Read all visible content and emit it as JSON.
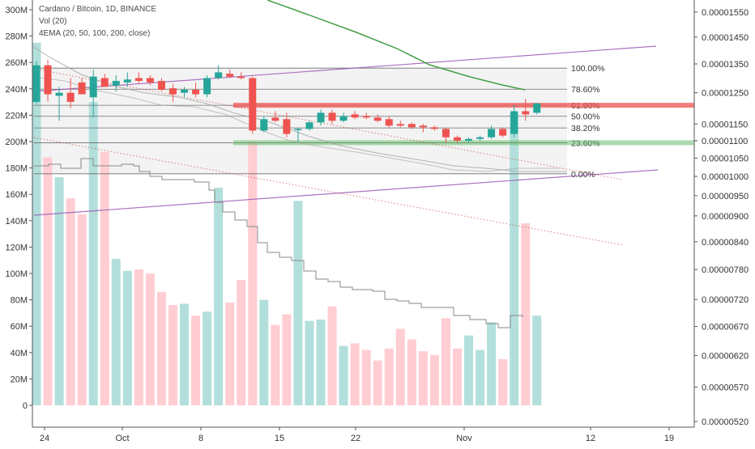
{
  "chart_data": {
    "type": "candlestick",
    "title": "Cardano / Bitcoin, 1D, BINANCE",
    "legend_lines": [
      "Cardano / Bitcoin, 1D, BINANCE",
      "Vol (20)",
      "4EMA (20, 50, 100, 200, close)"
    ],
    "left_axis": {
      "ticks": [
        "300M",
        "280M",
        "260M",
        "240M",
        "220M",
        "200M",
        "180M",
        "160M",
        "140M",
        "120M",
        "100M",
        "80M",
        "60M",
        "40M",
        "20M",
        "0"
      ],
      "range": [
        0,
        300000000
      ]
    },
    "right_axis": {
      "scale": "log",
      "ticks": [
        "0.00001550",
        "0.00001450",
        "0.00001350",
        "0.00001250",
        "0.00001150",
        "0.00001100",
        "0.00001050",
        "0.00001000",
        "0.00000950",
        "0.00000900",
        "0.00000840",
        "0.00000780",
        "0.00000720",
        "0.00000670",
        "0.00000620",
        "0.00000570",
        "0.00000520"
      ],
      "range": [
        5.1e-06,
        1.59e-05
      ]
    },
    "x_axis": {
      "ticks": [
        "24",
        "Oct",
        "8",
        "15",
        "22",
        "Nov",
        "12",
        "19"
      ]
    },
    "fibonacci": {
      "high": 1.335e-05,
      "low": 1.007e-05,
      "levels": [
        {
          "label": "100.00%",
          "value": 1.335e-05
        },
        {
          "label": "78.60%",
          "value": 1.262e-05
        },
        {
          "label": "61.80%",
          "value": 1.209e-05
        },
        {
          "label": "50.00%",
          "value": 1.174e-05
        },
        {
          "label": "38.20%",
          "value": 1.138e-05
        },
        {
          "label": "23.60%",
          "value": 1.094e-05
        },
        {
          "label": "0.00%",
          "value": 1.007e-05
        }
      ]
    },
    "highlight_zones": {
      "resistance": {
        "value": 1.209e-05,
        "color": "#ef5350"
      },
      "support": {
        "value": 1.094e-05,
        "color": "#66bb6a"
      }
    },
    "candles": [
      {
        "d": "Sep 23",
        "o": 1.22e-05,
        "h": 1.36e-05,
        "l": 1.215e-05,
        "c": 1.345e-05,
        "v": 275000000
      },
      {
        "d": "Sep 24",
        "o": 1.345e-05,
        "h": 1.365e-05,
        "l": 1.22e-05,
        "c": 1.245e-05,
        "v": 188000000
      },
      {
        "d": "Sep 25",
        "o": 1.24e-05,
        "h": 1.27e-05,
        "l": 1.16e-05,
        "c": 1.25e-05,
        "v": 173000000
      },
      {
        "d": "Sep 26",
        "o": 1.25e-05,
        "h": 1.3e-05,
        "l": 1.2e-05,
        "c": 1.22e-05,
        "v": 157000000
      },
      {
        "d": "Sep 27",
        "o": 1.285e-05,
        "h": 1.3e-05,
        "l": 1.25e-05,
        "c": 1.245e-05,
        "v": 145000000
      },
      {
        "d": "Sep 28",
        "o": 1.235e-05,
        "h": 1.33e-05,
        "l": 1.17e-05,
        "c": 1.305e-05,
        "v": 230000000
      },
      {
        "d": "Sep 29",
        "o": 1.3e-05,
        "h": 1.315e-05,
        "l": 1.27e-05,
        "c": 1.27e-05,
        "v": 192000000
      },
      {
        "d": "Sep 30",
        "o": 1.275e-05,
        "h": 1.31e-05,
        "l": 1.255e-05,
        "c": 1.29e-05,
        "v": 111000000
      },
      {
        "d": "Oct 1",
        "o": 1.285e-05,
        "h": 1.32e-05,
        "l": 1.27e-05,
        "c": 1.295e-05,
        "v": 102000000
      },
      {
        "d": "Oct 2",
        "o": 1.3e-05,
        "h": 1.32e-05,
        "l": 1.28e-05,
        "c": 1.29e-05,
        "v": 103000000
      },
      {
        "d": "Oct 3",
        "o": 1.3e-05,
        "h": 1.31e-05,
        "l": 1.275e-05,
        "c": 1.285e-05,
        "v": 100000000
      },
      {
        "d": "Oct 4",
        "o": 1.29e-05,
        "h": 1.3e-05,
        "l": 1.255e-05,
        "c": 1.26e-05,
        "v": 86000000
      },
      {
        "d": "Oct 5",
        "o": 1.265e-05,
        "h": 1.28e-05,
        "l": 1.22e-05,
        "c": 1.245e-05,
        "v": 76000000
      },
      {
        "d": "Oct 6",
        "o": 1.25e-05,
        "h": 1.27e-05,
        "l": 1.235e-05,
        "c": 1.26e-05,
        "v": 77000000
      },
      {
        "d": "Oct 7",
        "o": 1.26e-05,
        "h": 1.285e-05,
        "l": 1.235e-05,
        "c": 1.245e-05,
        "v": 68000000
      },
      {
        "d": "Oct 8",
        "o": 1.245e-05,
        "h": 1.31e-05,
        "l": 1.235e-05,
        "c": 1.3e-05,
        "v": 71000000
      },
      {
        "d": "Oct 9",
        "o": 1.3e-05,
        "h": 1.345e-05,
        "l": 1.295e-05,
        "c": 1.32e-05,
        "v": 165000000
      },
      {
        "d": "Oct 10",
        "o": 1.315e-05,
        "h": 1.33e-05,
        "l": 1.3e-05,
        "c": 1.305e-05,
        "v": 78000000
      },
      {
        "d": "Oct 11",
        "o": 1.305e-05,
        "h": 1.32e-05,
        "l": 1.295e-05,
        "c": 1.3e-05,
        "v": 95000000
      },
      {
        "d": "Oct 12",
        "o": 1.3e-05,
        "h": 1.305e-05,
        "l": 1.12e-05,
        "c": 1.13e-05,
        "v": 200000000
      },
      {
        "d": "Oct 13",
        "o": 1.13e-05,
        "h": 1.175e-05,
        "l": 1.125e-05,
        "c": 1.165e-05,
        "v": 80000000
      },
      {
        "d": "Oct 14",
        "o": 1.17e-05,
        "h": 1.19e-05,
        "l": 1.155e-05,
        "c": 1.16e-05,
        "v": 61000000
      },
      {
        "d": "Oct 15",
        "o": 1.165e-05,
        "h": 1.185e-05,
        "l": 1.11e-05,
        "c": 1.12e-05,
        "v": 69000000
      },
      {
        "d": "Oct 16",
        "o": 1.135e-05,
        "h": 1.14e-05,
        "l": 1.095e-05,
        "c": 1.135e-05,
        "v": 155000000
      },
      {
        "d": "Oct 17",
        "o": 1.135e-05,
        "h": 1.16e-05,
        "l": 1.13e-05,
        "c": 1.155e-05,
        "v": 64000000
      },
      {
        "d": "Oct 18",
        "o": 1.155e-05,
        "h": 1.195e-05,
        "l": 1.145e-05,
        "c": 1.185e-05,
        "v": 65000000
      },
      {
        "d": "Oct 19",
        "o": 1.185e-05,
        "h": 1.195e-05,
        "l": 1.15e-05,
        "c": 1.16e-05,
        "v": 75000000
      },
      {
        "d": "Oct 20",
        "o": 1.16e-05,
        "h": 1.185e-05,
        "l": 1.155e-05,
        "c": 1.175e-05,
        "v": 45000000
      },
      {
        "d": "Oct 21",
        "o": 1.18e-05,
        "h": 1.19e-05,
        "l": 1.165e-05,
        "c": 1.17e-05,
        "v": 47000000
      },
      {
        "d": "Oct 22",
        "o": 1.175e-05,
        "h": 1.185e-05,
        "l": 1.165e-05,
        "c": 1.17e-05,
        "v": 42000000
      },
      {
        "d": "Oct 23",
        "o": 1.17e-05,
        "h": 1.18e-05,
        "l": 1.155e-05,
        "c": 1.16e-05,
        "v": 34000000
      },
      {
        "d": "Oct 24",
        "o": 1.165e-05,
        "h": 1.175e-05,
        "l": 1.14e-05,
        "c": 1.145e-05,
        "v": 43000000
      },
      {
        "d": "Oct 25",
        "o": 1.15e-05,
        "h": 1.16e-05,
        "l": 1.14e-05,
        "c": 1.145e-05,
        "v": 58000000
      },
      {
        "d": "Oct 26",
        "o": 1.15e-05,
        "h": 1.155e-05,
        "l": 1.135e-05,
        "c": 1.14e-05,
        "v": 50000000
      },
      {
        "d": "Oct 27",
        "o": 1.145e-05,
        "h": 1.15e-05,
        "l": 1.125e-05,
        "c": 1.14e-05,
        "v": 41000000
      },
      {
        "d": "Oct 28",
        "o": 1.14e-05,
        "h": 1.145e-05,
        "l": 1.13e-05,
        "c": 1.135e-05,
        "v": 38000000
      },
      {
        "d": "Oct 29",
        "o": 1.135e-05,
        "h": 1.14e-05,
        "l": 1.095e-05,
        "c": 1.11e-05,
        "v": 66000000
      },
      {
        "d": "Oct 30",
        "o": 1.11e-05,
        "h": 1.115e-05,
        "l": 1.095e-05,
        "c": 1.1e-05,
        "v": 43000000
      },
      {
        "d": "Oct 31",
        "o": 1.1e-05,
        "h": 1.11e-05,
        "l": 1.095e-05,
        "c": 1.105e-05,
        "v": 53000000
      },
      {
        "d": "Nov 1",
        "o": 1.105e-05,
        "h": 1.115e-05,
        "l": 1.1e-05,
        "c": 1.11e-05,
        "v": 42000000
      },
      {
        "d": "Nov 2",
        "o": 1.11e-05,
        "h": 1.145e-05,
        "l": 1.105e-05,
        "c": 1.135e-05,
        "v": 63000000
      },
      {
        "d": "Nov 3",
        "o": 1.135e-05,
        "h": 1.14e-05,
        "l": 1.11e-05,
        "c": 1.115e-05,
        "v": 35000000
      },
      {
        "d": "Nov 4",
        "o": 1.12e-05,
        "h": 1.21e-05,
        "l": 1.11e-05,
        "c": 1.19e-05,
        "v": 222000000
      },
      {
        "d": "Nov 5",
        "o": 1.19e-05,
        "h": 1.23e-05,
        "l": 1.16e-05,
        "c": 1.18e-05,
        "v": 138000000
      },
      {
        "d": "Nov 6",
        "o": 1.185e-05,
        "h": 1.215e-05,
        "l": 1.18e-05,
        "c": 1.215e-05,
        "v": 68000000
      }
    ],
    "colors": {
      "up": "#26a69a",
      "down": "#ef5350",
      "up_volume": "#b2dfdb",
      "down_volume": "#ffcdd2",
      "ema_green": "#43a047",
      "channel": "#9c59b6",
      "ema_gray": "#9e9e9e"
    }
  }
}
